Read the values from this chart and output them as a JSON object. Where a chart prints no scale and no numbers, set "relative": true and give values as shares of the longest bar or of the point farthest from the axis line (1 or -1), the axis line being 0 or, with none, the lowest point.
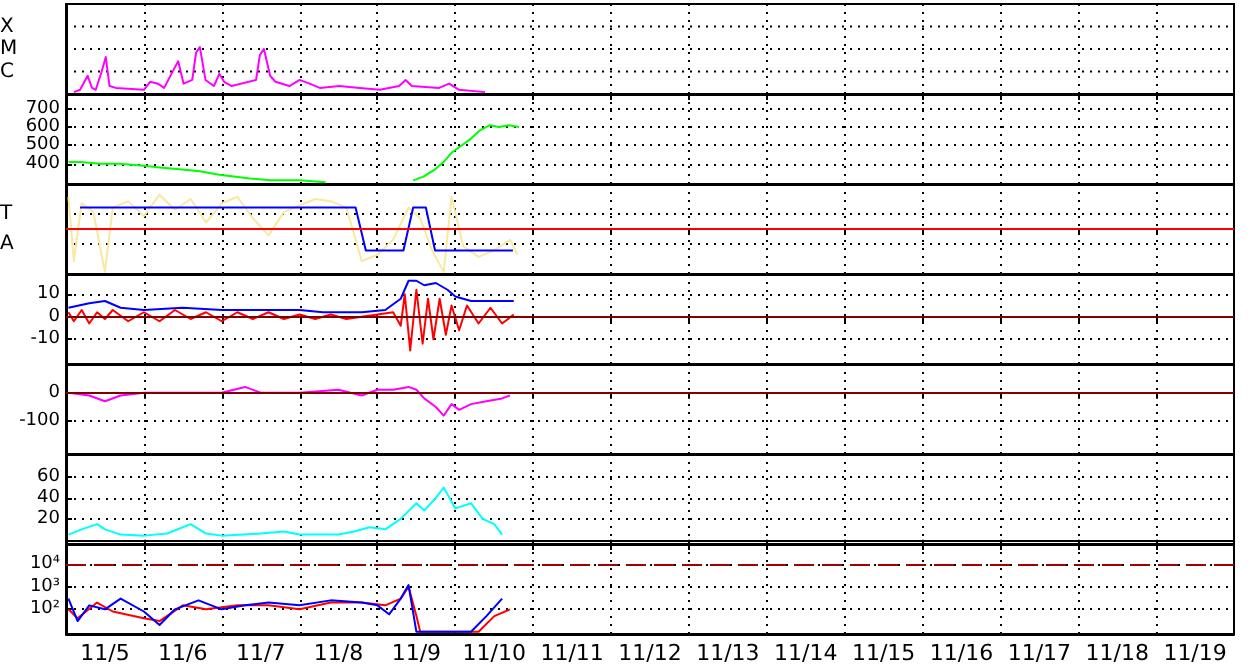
{
  "chart_data": [
    {
      "type": "line",
      "relative": true,
      "xlim": [
        "--11-05",
        "--11-20"
      ],
      "xticks": [
        {
          "value": "--11-06",
          "label": null
        },
        {
          "value": "--11-07",
          "label": null
        },
        {
          "value": "--11-08",
          "label": null
        },
        {
          "value": "--11-09",
          "label": null
        },
        {
          "value": "--11-10",
          "label": null
        },
        {
          "value": "--11-11",
          "label": null
        },
        {
          "value": "--11-12",
          "label": null
        },
        {
          "value": "--11-13",
          "label": null
        },
        {
          "value": "--11-14",
          "label": null
        },
        {
          "value": "--11-15",
          "label": null
        },
        {
          "value": "--11-16",
          "label": null
        },
        {
          "value": "--11-17",
          "label": null
        },
        {
          "value": "--11-18",
          "label": null
        },
        {
          "value": "--11-19",
          "label": null
        }
      ],
      "grid": true,
      "tick_labels": "y",
      "marker": "none",
      "annotations": [
        "X",
        "M",
        "C"
      ],
      "series": [
        {
          "color": "#ff00ff",
          "x": [
            "--11-05T02:25",
            "--11-05T04:20",
            "--11-05T06:40",
            "--11-05T08:00",
            "--11-05T09:10",
            "--11-05T11:00",
            "--11-05T12:15",
            "--11-05T13:25",
            "--11-05T15:20",
            "--11-06T00:00",
            "--11-06T01:55",
            "--11-06T04:20",
            "--11-06T06:15",
            "--11-06T09:10",
            "--11-06T10:35",
            "--11-06T12:15",
            "--11-06T14:55",
            "--11-06T16:05",
            "--11-06T17:15",
            "--11-06T19:00",
            "--11-06T21:35",
            "--11-06T23:15",
            "--11-07T00:45",
            "--11-07T03:05",
            "--11-07T10:35",
            "--11-07T11:45",
            "--11-07T13:00",
            "--11-07T14:55",
            "--11-07T16:35",
            "--11-07T20:50",
            "--11-08T00:00",
            "--11-08T03:05",
            "--11-08T06:15",
            "--11-08T12:15",
            "--11-08T18:30",
            "--11-09T00:45",
            "--11-09T06:40",
            "--11-09T08:40",
            "--11-09T10:35",
            "--11-09T19:00",
            "--11-09T22:05",
            "--11-10T01:10",
            "--11-10T09:10"
          ],
          "values": [
            0.04,
            0.09,
            0.39,
            0.13,
            0.09,
            0.48,
            0.79,
            0.17,
            0.13,
            0.09,
            0.26,
            0.22,
            0.13,
            0.52,
            0.7,
            0.22,
            0.3,
            0.88,
            1,
            0.3,
            0.17,
            0.43,
            0.26,
            0.17,
            0.3,
            0.83,
            0.96,
            0.39,
            0.26,
            0.17,
            0.3,
            0.22,
            0.13,
            0.17,
            0.13,
            0.09,
            0.17,
            0.3,
            0.17,
            0.13,
            0.22,
            0.09,
            0.04
          ]
        }
      ]
    },
    {
      "type": "line",
      "xlim": [
        "--11-05",
        "--11-20"
      ],
      "xticks": [
        {
          "value": "--11-06",
          "label": null
        },
        {
          "value": "--11-07",
          "label": null
        },
        {
          "value": "--11-08",
          "label": null
        },
        {
          "value": "--11-09",
          "label": null
        },
        {
          "value": "--11-10",
          "label": null
        },
        {
          "value": "--11-11",
          "label": null
        },
        {
          "value": "--11-12",
          "label": null
        },
        {
          "value": "--11-13",
          "label": null
        },
        {
          "value": "--11-14",
          "label": null
        },
        {
          "value": "--11-15",
          "label": null
        },
        {
          "value": "--11-16",
          "label": null
        },
        {
          "value": "--11-17",
          "label": null
        },
        {
          "value": "--11-18",
          "label": null
        },
        {
          "value": "--11-19",
          "label": null
        }
      ],
      "ylim": [
        290,
        780
      ],
      "yticks": [
        400,
        500,
        600,
        700
      ],
      "grid": true,
      "tick_labels": "y",
      "marker": "none",
      "series": [
        {
          "color": "#00ff00",
          "x": [
            "--11-05T00:45",
            "--11-05T04:20",
            "--11-05T10:35",
            "--11-05T16:35",
            "--11-06T00:00",
            "--11-06T05:00",
            "--11-06T11:00",
            "--11-06T17:15",
            "--11-06T23:15",
            "--11-07T04:20",
            "--11-07T08:40",
            "--11-07T14:55",
            "--11-08T00:00",
            "--11-08T08:00",
            "--11-08T21:35",
            "--11-09T11:00",
            "--11-09T14:10",
            "--11-09T17:45",
            "--11-09T20:25",
            "--11-09T22:50",
            "--11-10T01:10",
            "--11-10T04:20",
            "--11-10T07:25",
            "--11-10T10:35",
            "--11-10T13:25",
            "--11-10T16:35",
            "--11-10T19:40"
          ],
          "values": [
            410,
            410,
            400,
            400,
            390,
            380,
            370,
            360,
            340,
            330,
            320,
            310,
            310,
            300,
            null,
            310,
            330,
            370,
            410,
            460,
            490,
            530,
            580,
            610,
            600,
            610,
            600
          ]
        }
      ]
    },
    {
      "type": "line",
      "relative": true,
      "xlim": [
        "--11-05",
        "--11-20"
      ],
      "xticks": [
        {
          "value": "--11-06",
          "label": null
        },
        {
          "value": "--11-07",
          "label": null
        },
        {
          "value": "--11-08",
          "label": null
        },
        {
          "value": "--11-09",
          "label": null
        },
        {
          "value": "--11-10",
          "label": null
        },
        {
          "value": "--11-11",
          "label": null
        },
        {
          "value": "--11-12",
          "label": null
        },
        {
          "value": "--11-13",
          "label": null
        },
        {
          "value": "--11-14",
          "label": null
        },
        {
          "value": "--11-15",
          "label": null
        },
        {
          "value": "--11-16",
          "label": null
        },
        {
          "value": "--11-17",
          "label": null
        },
        {
          "value": "--11-18",
          "label": null
        },
        {
          "value": "--11-19",
          "label": null
        }
      ],
      "grid": true,
      "tick_labels": "y",
      "marker": "none",
      "annotations": [
        "T",
        "A"
      ],
      "ref_lines": [
        {
          "axis": "y",
          "value": 0,
          "color": "#ff0000"
        }
      ],
      "series": [
        {
          "color": "#f8e8a0",
          "x": [
            "--11-05T00:45",
            "--11-05T02:25",
            "--11-05T04:50",
            "--11-05T08:25",
            "--11-05T12:00",
            "--11-05T14:25",
            "--11-05T19:10",
            "--11-06T00:00",
            "--11-06T04:50",
            "--11-06T09:35",
            "--11-06T14:25",
            "--11-06T19:10",
            "--11-07T00:00",
            "--11-07T04:50",
            "--11-07T09:35",
            "--11-07T14:25",
            "--11-07T19:10",
            "--11-08T00:00",
            "--11-08T04:50",
            "--11-08T09:35",
            "--11-08T14:25",
            "--11-08T19:10",
            "--11-09T00:00",
            "--11-09T04:50",
            "--11-09T09:35",
            "--11-09T13:10",
            "--11-09T16:50",
            "--11-09T20:25",
            "--11-09T22:50",
            "--11-10T02:25",
            "--11-10T07:10",
            "--11-10T12:00",
            "--11-10T16:50",
            "--11-10T19:10"
          ],
          "values": [
            0.75,
            -0.75,
            0.6,
            0.4,
            -1,
            0.5,
            0.65,
            0.3,
            0.8,
            0.45,
            0.7,
            0.15,
            0.6,
            0.75,
            0.25,
            -0.15,
            0.4,
            0.55,
            0.7,
            0.65,
            0.5,
            -0.75,
            -0.6,
            -0.25,
            0.5,
            0.25,
            -0.5,
            -1,
            0.75,
            -0.4,
            -0.65,
            -0.5,
            -0.25,
            -0.6
          ]
        },
        {
          "color": "#0000ff",
          "x": [
            "--11-05T04:20",
            "--11-08T17:15",
            "--11-08T20:25",
            "--11-09T08:00",
            "--11-09T11:00",
            "--11-09T14:55",
            "--11-09T17:45",
            "--11-10T17:45"
          ],
          "values": [
            0.5,
            0.5,
            -0.5,
            -0.5,
            0.5,
            0.5,
            -0.5,
            -0.5
          ]
        }
      ]
    },
    {
      "type": "line",
      "xlim": [
        "--11-05",
        "--11-20"
      ],
      "xticks": [
        {
          "value": "--11-06",
          "label": null
        },
        {
          "value": "--11-07",
          "label": null
        },
        {
          "value": "--11-08",
          "label": null
        },
        {
          "value": "--11-09",
          "label": null
        },
        {
          "value": "--11-10",
          "label": null
        },
        {
          "value": "--11-11",
          "label": null
        },
        {
          "value": "--11-12",
          "label": null
        },
        {
          "value": "--11-13",
          "label": null
        },
        {
          "value": "--11-14",
          "label": null
        },
        {
          "value": "--11-15",
          "label": null
        },
        {
          "value": "--11-16",
          "label": null
        },
        {
          "value": "--11-17",
          "label": null
        },
        {
          "value": "--11-18",
          "label": null
        },
        {
          "value": "--11-19",
          "label": null
        }
      ],
      "ylim": [
        -21,
        19
      ],
      "yticks": [
        -10,
        0,
        10
      ],
      "grid": true,
      "tick_labels": "y",
      "marker": "none",
      "ref_lines": [
        {
          "axis": "y",
          "value": 0,
          "color": "#800000"
        }
      ],
      "series": [
        {
          "color": "#0000ff",
          "x": [
            "--11-05T00:45",
            "--11-05T07:10",
            "--11-05T12:00",
            "--11-05T16:50",
            "--11-06T00:00",
            "--11-06T12:00",
            "--11-07T00:00",
            "--11-07T12:00",
            "--11-08T00:00",
            "--11-08T07:10",
            "--11-08T19:10",
            "--11-09T02:25",
            "--11-09T07:10",
            "--11-09T09:35",
            "--11-09T12:00",
            "--11-09T14:25",
            "--11-09T18:00",
            "--11-09T21:35",
            "--11-10T00:00",
            "--11-10T04:50",
            "--11-10T12:00",
            "--11-10T18:00"
          ],
          "values": [
            4,
            6,
            7,
            4,
            3,
            4,
            3,
            3,
            3,
            2,
            2,
            3,
            8,
            16,
            16,
            14,
            15,
            12,
            9,
            7,
            7,
            7
          ]
        },
        {
          "color": "#ff0000",
          "x": [
            "--11-05T00:45",
            "--11-05T02:25",
            "--11-05T04:50",
            "--11-05T07:10",
            "--11-05T09:35",
            "--11-05T12:00",
            "--11-05T14:25",
            "--11-05T19:10",
            "--11-06T00:00",
            "--11-06T04:50",
            "--11-06T09:35",
            "--11-06T14:25",
            "--11-06T19:10",
            "--11-07T00:00",
            "--11-07T04:50",
            "--11-07T09:35",
            "--11-07T14:25",
            "--11-07T19:10",
            "--11-08T00:00",
            "--11-08T04:50",
            "--11-08T09:35",
            "--11-08T14:25",
            "--11-08T19:10",
            "--11-09T00:00",
            "--11-09T04:50",
            "--11-09T07:10",
            "--11-09T08:25",
            "--11-09T10:05",
            "--11-09T12:00",
            "--11-09T13:55",
            "--11-09T15:35",
            "--11-09T17:15",
            "--11-09T19:10",
            "--11-09T21:05",
            "--11-09T22:50",
            "--11-10T01:10",
            "--11-10T03:35",
            "--11-10T07:10",
            "--11-10T10:50",
            "--11-10T14:25",
            "--11-10T18:00"
          ],
          "values": [
            2,
            -2,
            3,
            -3,
            2,
            -1,
            3,
            -2,
            2,
            -2,
            3,
            -1,
            2,
            -2,
            2,
            -1,
            2,
            -1,
            1,
            -1,
            1,
            -1,
            0,
            1,
            2,
            -4,
            10,
            -15,
            12,
            -12,
            8,
            -10,
            8,
            -8,
            5,
            -6,
            5,
            -3,
            4,
            -3,
            1
          ]
        }
      ]
    },
    {
      "type": "line",
      "xlim": [
        "--11-05",
        "--11-20"
      ],
      "xticks": [
        {
          "value": "--11-06",
          "label": null
        },
        {
          "value": "--11-07",
          "label": null
        },
        {
          "value": "--11-08",
          "label": null
        },
        {
          "value": "--11-09",
          "label": null
        },
        {
          "value": "--11-10",
          "label": null
        },
        {
          "value": "--11-11",
          "label": null
        },
        {
          "value": "--11-12",
          "label": null
        },
        {
          "value": "--11-13",
          "label": null
        },
        {
          "value": "--11-14",
          "label": null
        },
        {
          "value": "--11-15",
          "label": null
        },
        {
          "value": "--11-16",
          "label": null
        },
        {
          "value": "--11-17",
          "label": null
        },
        {
          "value": "--11-18",
          "label": null
        },
        {
          "value": "--11-19",
          "label": null
        }
      ],
      "ylim": [
        -214,
        100
      ],
      "yticks": [
        -100,
        0
      ],
      "grid": true,
      "tick_labels": "y",
      "marker": "none",
      "ref_lines": [
        {
          "axis": "y",
          "value": 0,
          "color": "#800000"
        }
      ],
      "series": [
        {
          "color": "#ff00ff",
          "x": [
            "--11-05T00:45",
            "--11-05T07:10",
            "--11-05T12:00",
            "--11-05T16:50",
            "--11-06T00:00",
            "--11-06T07:10",
            "--11-06T14:25",
            "--11-07T00:00",
            "--11-07T07:10",
            "--11-07T12:00",
            "--11-07T19:10",
            "--11-08T00:00",
            "--11-08T12:00",
            "--11-08T19:10",
            "--11-09T00:00",
            "--11-09T04:50",
            "--11-09T09:35",
            "--11-09T12:00",
            "--11-09T14:25",
            "--11-09T18:00",
            "--11-09T20:25",
            "--11-09T22:50",
            "--11-10T01:10",
            "--11-10T04:50",
            "--11-10T09:35",
            "--11-10T14:25",
            "--11-10T16:50"
          ],
          "values": [
            0,
            -10,
            -30,
            -10,
            0,
            0,
            0,
            0,
            20,
            0,
            0,
            0,
            10,
            -10,
            10,
            10,
            20,
            10,
            -20,
            -50,
            -80,
            -40,
            -60,
            -40,
            -30,
            -20,
            -10
          ]
        }
      ]
    },
    {
      "type": "line",
      "xlim": [
        "--11-05",
        "--11-20"
      ],
      "xticks": [
        {
          "value": "--11-06",
          "label": null
        },
        {
          "value": "--11-07",
          "label": null
        },
        {
          "value": "--11-08",
          "label": null
        },
        {
          "value": "--11-09",
          "label": null
        },
        {
          "value": "--11-10",
          "label": null
        },
        {
          "value": "--11-11",
          "label": null
        },
        {
          "value": "--11-12",
          "label": null
        },
        {
          "value": "--11-13",
          "label": null
        },
        {
          "value": "--11-14",
          "label": null
        },
        {
          "value": "--11-15",
          "label": null
        },
        {
          "value": "--11-16",
          "label": null
        },
        {
          "value": "--11-17",
          "label": null
        },
        {
          "value": "--11-18",
          "label": null
        },
        {
          "value": "--11-19",
          "label": null
        }
      ],
      "ylim": [
        -4,
        82
      ],
      "yticks": [
        20,
        40,
        60
      ],
      "grid": true,
      "tick_labels": "y",
      "marker": "none",
      "series": [
        {
          "color": "#00ffff",
          "x": [
            "--11-05T00:45",
            "--11-05T04:50",
            "--11-05T09:35",
            "--11-05T12:00",
            "--11-05T16:50",
            "--11-06T00:00",
            "--11-06T07:10",
            "--11-06T14:25",
            "--11-06T19:10",
            "--11-07T00:00",
            "--11-07T12:00",
            "--11-07T19:10",
            "--11-08T00:00",
            "--11-08T12:00",
            "--11-08T16:50",
            "--11-08T21:35",
            "--11-09T02:25",
            "--11-09T07:10",
            "--11-09T12:00",
            "--11-09T14:25",
            "--11-09T18:00",
            "--11-09T20:25",
            "--11-10T00:00",
            "--11-10T04:50",
            "--11-10T08:25",
            "--11-10T12:00",
            "--11-10T14:25"
          ],
          "values": [
            5,
            10,
            15,
            10,
            5,
            4,
            6,
            15,
            6,
            4,
            6,
            8,
            5,
            5,
            8,
            12,
            10,
            20,
            35,
            28,
            40,
            50,
            30,
            35,
            20,
            15,
            5
          ]
        }
      ]
    },
    {
      "type": "line",
      "xlim": [
        "--11-05",
        "--11-20"
      ],
      "xticks": [
        {
          "value": "--11-05T12:00",
          "label": "11/5"
        },
        {
          "value": "--11-06T12:00",
          "label": "11/6"
        },
        {
          "value": "--11-07T12:00",
          "label": "11/7"
        },
        {
          "value": "--11-08T12:00",
          "label": "11/8"
        },
        {
          "value": "--11-09T12:00",
          "label": "11/9"
        },
        {
          "value": "--11-10T12:00",
          "label": "11/10"
        },
        {
          "value": "--11-11T12:00",
          "label": "11/11"
        },
        {
          "value": "--11-12T12:00",
          "label": "11/12"
        },
        {
          "value": "--11-13T12:00",
          "label": "11/13"
        },
        {
          "value": "--11-14T12:00",
          "label": "11/14"
        },
        {
          "value": "--11-15T12:00",
          "label": "11/15"
        },
        {
          "value": "--11-16T12:00",
          "label": "11/16"
        },
        {
          "value": "--11-17T12:00",
          "label": "11/17"
        },
        {
          "value": "--11-18T12:00",
          "label": "11/18"
        },
        {
          "value": "--11-19T12:00",
          "label": "11/19"
        },
        {
          "value": "--11-06",
          "label": null
        },
        {
          "value": "--11-07",
          "label": null
        },
        {
          "value": "--11-08",
          "label": null
        },
        {
          "value": "--11-09",
          "label": null
        },
        {
          "value": "--11-10",
          "label": null
        },
        {
          "value": "--11-11",
          "label": null
        },
        {
          "value": "--11-12",
          "label": null
        },
        {
          "value": "--11-13",
          "label": null
        },
        {
          "value": "--11-14",
          "label": null
        },
        {
          "value": "--11-15",
          "label": null
        },
        {
          "value": "--11-16",
          "label": null
        },
        {
          "value": "--11-17",
          "label": null
        },
        {
          "value": "--11-18",
          "label": null
        },
        {
          "value": "--11-19",
          "label": null
        }
      ],
      "ylim": [
        8,
        80000
      ],
      "log": "y",
      "yticks": [
        {
          "value": 10000,
          "label": "10⁴"
        },
        {
          "value": 1000,
          "label": "10³"
        },
        {
          "value": 100,
          "label": "10²"
        }
      ],
      "grid": true,
      "marker": "none",
      "ref_lines": [
        {
          "axis": "y",
          "value": 10000,
          "color": "#a00000",
          "line_style": "dashed"
        }
      ],
      "series": [
        {
          "color": "#ff0000",
          "x": [
            "--11-05T00:45",
            "--11-05T03:35",
            "--11-05T09:35",
            "--11-05T14:25",
            "--11-06T00:00",
            "--11-06T04:50",
            "--11-06T12:00",
            "--11-06T19:10",
            "--11-07T04:50",
            "--11-07T14:25",
            "--11-08T00:00",
            "--11-08T09:35",
            "--11-08T19:10",
            "--11-09T02:25",
            "--11-09T07:10",
            "--11-09T09:35",
            "--11-09T12:00",
            "--11-09T13:10",
            "--11-10T00:00",
            "--11-10T07:10",
            "--11-10T12:00",
            "--11-10T16:50"
          ],
          "values": [
            100,
            40,
            200,
            80,
            40,
            30,
            150,
            100,
            150,
            150,
            100,
            200,
            200,
            150,
            300,
            1000,
            50,
            10,
            10,
            10,
            50,
            100
          ]
        },
        {
          "color": "#0000ff",
          "x": [
            "--11-05T00:45",
            "--11-05T03:35",
            "--11-05T07:10",
            "--11-05T12:00",
            "--11-05T16:50",
            "--11-06T00:00",
            "--11-06T04:50",
            "--11-06T09:35",
            "--11-06T16:50",
            "--11-07T00:00",
            "--11-07T07:10",
            "--11-07T14:25",
            "--11-08T00:00",
            "--11-08T09:35",
            "--11-08T19:10",
            "--11-09T00:00",
            "--11-09T03:35",
            "--11-09T07:10",
            "--11-09T09:35",
            "--11-09T12:00",
            "--11-09T16:50",
            "--11-10T00:00",
            "--11-10T04:50",
            "--11-10T09:35",
            "--11-10T14:25"
          ],
          "values": [
            300,
            30,
            150,
            100,
            300,
            80,
            20,
            100,
            250,
            100,
            150,
            200,
            150,
            250,
            200,
            150,
            60,
            300,
            1200,
            10,
            10,
            10,
            10,
            50,
            300
          ]
        }
      ]
    }
  ]
}
